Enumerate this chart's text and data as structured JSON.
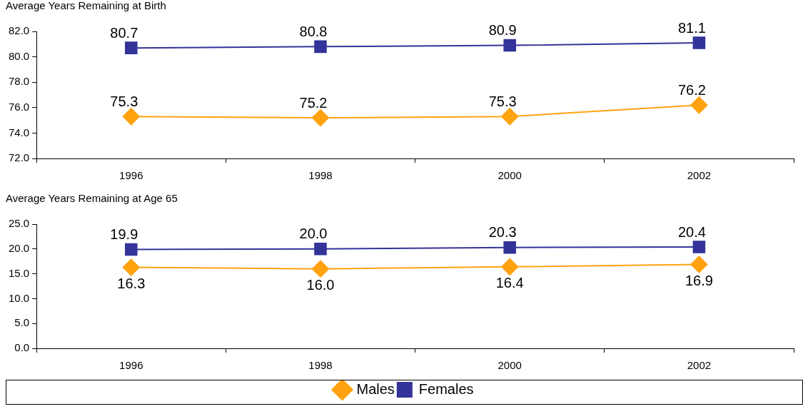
{
  "chart_data": [
    {
      "type": "line",
      "title": "Average Years Remaining at Birth",
      "categories": [
        "1996",
        "1998",
        "2000",
        "2002"
      ],
      "series": [
        {
          "color": "#ffa20f",
          "marker": "diamond",
          "values": [
            75.3,
            75.2,
            75.3,
            76.2
          ]
        },
        {
          "color": "#333399",
          "marker": "square",
          "values": [
            80.7,
            80.8,
            80.9,
            81.1
          ]
        }
      ],
      "ylim": [
        72,
        82
      ],
      "yticks": [
        {
          "value": 72,
          "label": "72.0"
        },
        {
          "value": 74,
          "label": "74.0"
        },
        {
          "value": 76,
          "label": "76.0"
        },
        {
          "value": 78,
          "label": "78.0"
        },
        {
          "value": 80,
          "label": "80.0"
        },
        {
          "value": 82,
          "label": "82.0"
        }
      ],
      "grid": false,
      "legend": false,
      "data_labels": true
    },
    {
      "type": "line",
      "title": "Average Years Remaining at Age 65",
      "categories": [
        "1996",
        "1998",
        "2000",
        "2002"
      ],
      "series": [
        {
          "name": "Males",
          "color": "#ffa20f",
          "marker": "diamond",
          "values": [
            16.3,
            16.0,
            16.4,
            16.9
          ],
          "value_labels": [
            "16.3",
            "16.0",
            "16.4",
            "16.9"
          ]
        },
        {
          "name": "Females",
          "color": "#333399",
          "marker": "square",
          "values": [
            19.9,
            20.0,
            20.3,
            20.4
          ],
          "value_labels": [
            "19.9",
            "20.0",
            "20.3",
            "20.4"
          ]
        }
      ],
      "ylim": [
        0,
        25
      ],
      "yticks": [
        {
          "value": 0,
          "label": "0.0"
        },
        {
          "value": 5,
          "label": "5.0"
        },
        {
          "value": 10,
          "label": "10.0"
        },
        {
          "value": 15,
          "label": "15.0"
        },
        {
          "value": 20,
          "label": "20.0"
        },
        {
          "value": 25,
          "label": "25.0"
        }
      ],
      "grid": false,
      "legend": "bottom"
    }
  ]
}
